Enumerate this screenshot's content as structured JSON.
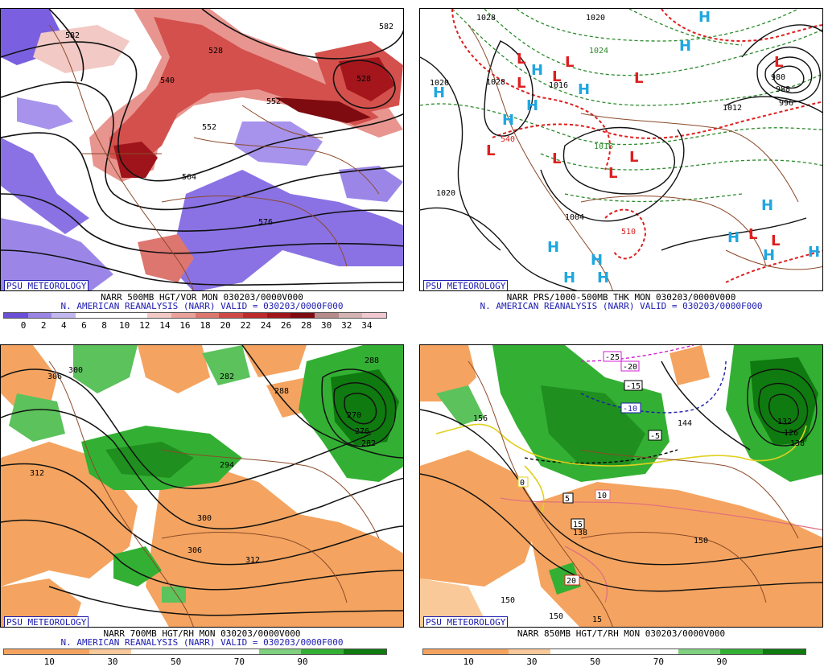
{
  "credit": "PSU METEOROLOGY",
  "panels": [
    {
      "caption1": "NARR 500MB HGT/VOR MON 030203/0000V000",
      "caption2": "N. AMERICAN REANALYSIS (NARR) VALID = 030203/0000F000",
      "scale_colors": [
        "#6a4ed8",
        "#9a85e6",
        "#c2b6f0",
        "#ffffff",
        "#ffffff",
        "#ffffff",
        "#f2c9c4",
        "#e9a19a",
        "#de7670",
        "#cf4a47",
        "#bd2a2c",
        "#a0151a",
        "#7d0b10",
        "#b58b8b",
        "#d3b3b3",
        "#f0c8d0"
      ],
      "ticks": [
        "0",
        "2",
        "4",
        "6",
        "8",
        "10",
        "12",
        "14",
        "16",
        "18",
        "20",
        "22",
        "24",
        "26",
        "28",
        "30",
        "32",
        "34"
      ],
      "labels": [
        "528",
        "540",
        "552",
        "564",
        "576",
        "582",
        "528",
        "552",
        "582"
      ]
    },
    {
      "caption1": "NARR PRS/1000-500MB THK MON 030203/0000V000",
      "caption2": "N. AMERICAN REANALYSIS (NARR) VALID = 030203/0000F000",
      "labels": [
        "1020",
        "1028",
        "1020",
        "1028",
        "1020",
        "1016",
        "1004",
        "980",
        "988",
        "996",
        "1012",
        "540",
        "510",
        "1024",
        "1016"
      ]
    },
    {
      "caption1": "NARR 700MB HGT/RH MON 030203/0000V000",
      "caption2": "N. AMERICAN REANALYSIS (NARR) VALID = 030203/0000F000",
      "scale_colors": [
        "#f4a460",
        "#f4a460",
        "#f9c99a",
        "#ffffff",
        "#ffffff",
        "#ffffff",
        "#7fd17f",
        "#33b033",
        "#0f7a0f"
      ],
      "ticks": [
        "10",
        "30",
        "50",
        "70",
        "90"
      ],
      "labels": [
        "300",
        "306",
        "312",
        "288",
        "294",
        "300",
        "306",
        "312",
        "282",
        "270",
        "276",
        "282",
        "288"
      ]
    },
    {
      "caption1": "NARR 850MB HGT/T/RH MON 030203/0000V000",
      "scale_colors": [
        "#f4a460",
        "#f4a460",
        "#f9c99a",
        "#ffffff",
        "#ffffff",
        "#ffffff",
        "#7fd17f",
        "#33b033",
        "#0f7a0f"
      ],
      "ticks": [
        "10",
        "30",
        "50",
        "70",
        "90"
      ],
      "labels": [
        "-25",
        "-20",
        "-15",
        "-10",
        "-5",
        "0",
        "5",
        "10",
        "15",
        "20",
        "156",
        "138",
        "144",
        "150",
        "132",
        "126",
        "150",
        "150",
        "138",
        "15"
      ]
    }
  ]
}
